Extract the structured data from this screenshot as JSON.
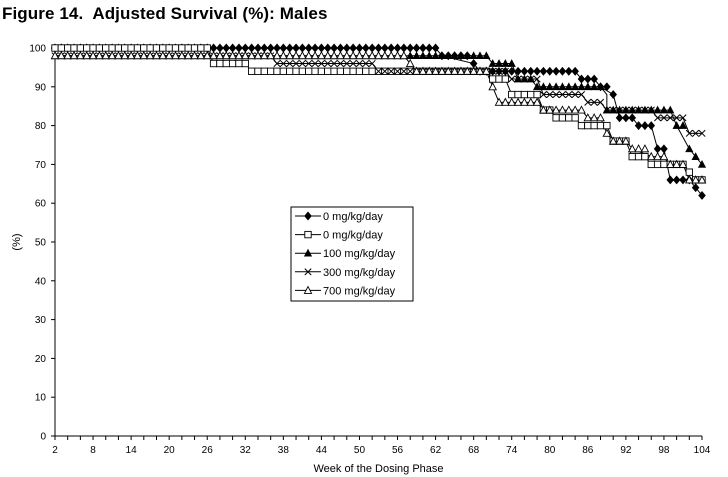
{
  "chart_data": {
    "type": "line",
    "title": "Figure 14.  Adjusted Survival (%): Males",
    "xlabel": "Week of the Dosing Phase",
    "ylabel": "(%)",
    "xlim": [
      2,
      104
    ],
    "ylim": [
      0,
      100
    ],
    "xticks": [
      2,
      8,
      14,
      20,
      26,
      32,
      38,
      44,
      50,
      56,
      62,
      68,
      74,
      80,
      86,
      92,
      98,
      104
    ],
    "yticks": [
      0,
      10,
      20,
      30,
      40,
      50,
      60,
      70,
      80,
      90,
      100
    ],
    "grid": false,
    "legend_position": "center-left",
    "series": [
      {
        "name": "0 mg/kg/day",
        "marker": "diamond-filled",
        "color": "#000000",
        "points": [
          [
            2,
            100
          ],
          [
            62,
            100
          ],
          [
            63,
            98
          ],
          [
            68,
            96
          ],
          [
            69,
            94
          ],
          [
            84,
            94
          ],
          [
            85,
            92
          ],
          [
            87,
            92
          ],
          [
            88,
            90
          ],
          [
            90,
            88
          ],
          [
            91,
            82
          ],
          [
            93,
            82
          ],
          [
            94,
            80
          ],
          [
            96,
            80
          ],
          [
            97,
            74
          ],
          [
            98,
            74
          ],
          [
            99,
            66
          ],
          [
            102,
            66
          ],
          [
            103,
            64
          ],
          [
            104,
            62
          ]
        ]
      },
      {
        "name": "0 mg/kg/day",
        "marker": "square-open",
        "color": "#000000",
        "points": [
          [
            2,
            100
          ],
          [
            26,
            100
          ],
          [
            27,
            96
          ],
          [
            32,
            96
          ],
          [
            33,
            94
          ],
          [
            54,
            94
          ],
          [
            55,
            94
          ],
          [
            70,
            94
          ],
          [
            71,
            92
          ],
          [
            73,
            92
          ],
          [
            74,
            88
          ],
          [
            78,
            88
          ],
          [
            79,
            84
          ],
          [
            80,
            84
          ],
          [
            81,
            82
          ],
          [
            84,
            82
          ],
          [
            85,
            80
          ],
          [
            89,
            80
          ],
          [
            90,
            76
          ],
          [
            92,
            76
          ],
          [
            93,
            72
          ],
          [
            95,
            72
          ],
          [
            96,
            70
          ],
          [
            99,
            70
          ],
          [
            100,
            70
          ],
          [
            101,
            70
          ],
          [
            102,
            68
          ],
          [
            103,
            66
          ],
          [
            104,
            66
          ]
        ]
      },
      {
        "name": "100 mg/kg/day",
        "marker": "triangle-filled",
        "color": "#000000",
        "points": [
          [
            2,
            98
          ],
          [
            68,
            98
          ],
          [
            70,
            98
          ],
          [
            71,
            96
          ],
          [
            74,
            96
          ],
          [
            75,
            92
          ],
          [
            77,
            92
          ],
          [
            78,
            90
          ],
          [
            88,
            90
          ],
          [
            89,
            88
          ],
          [
            89,
            84
          ],
          [
            98,
            84
          ],
          [
            99,
            84
          ],
          [
            100,
            80
          ],
          [
            102,
            74
          ],
          [
            103,
            72
          ],
          [
            104,
            70
          ]
        ]
      },
      {
        "name": "300 mg/kg/day",
        "marker": "x",
        "color": "#000000",
        "points": [
          [
            2,
            98
          ],
          [
            26,
            98
          ],
          [
            27,
            98
          ],
          [
            36,
            98
          ],
          [
            37,
            96
          ],
          [
            52,
            96
          ],
          [
            53,
            94
          ],
          [
            70,
            94
          ],
          [
            71,
            94
          ],
          [
            72,
            94
          ],
          [
            73,
            94
          ],
          [
            74,
            92
          ],
          [
            78,
            92
          ],
          [
            79,
            88
          ],
          [
            83,
            88
          ],
          [
            84,
            88
          ],
          [
            85,
            88
          ],
          [
            86,
            86
          ],
          [
            88,
            86
          ],
          [
            89,
            84
          ],
          [
            96,
            84
          ],
          [
            97,
            82
          ],
          [
            101,
            82
          ],
          [
            102,
            78
          ],
          [
            104,
            78
          ]
        ]
      },
      {
        "name": "700 mg/kg/day",
        "marker": "triangle-open",
        "color": "#000000",
        "points": [
          [
            2,
            98
          ],
          [
            57,
            98
          ],
          [
            58,
            96
          ],
          [
            59,
            94
          ],
          [
            70,
            94
          ],
          [
            71,
            90
          ],
          [
            72,
            86
          ],
          [
            78,
            86
          ],
          [
            79,
            84
          ],
          [
            81,
            84
          ],
          [
            82,
            84
          ],
          [
            84,
            84
          ],
          [
            85,
            84
          ],
          [
            86,
            82
          ],
          [
            88,
            82
          ],
          [
            89,
            78
          ],
          [
            90,
            76
          ],
          [
            92,
            76
          ],
          [
            93,
            74
          ],
          [
            96,
            72
          ],
          [
            97,
            72
          ],
          [
            98,
            72
          ],
          [
            99,
            70
          ],
          [
            101,
            70
          ],
          [
            102,
            66
          ],
          [
            104,
            66
          ]
        ]
      }
    ]
  }
}
